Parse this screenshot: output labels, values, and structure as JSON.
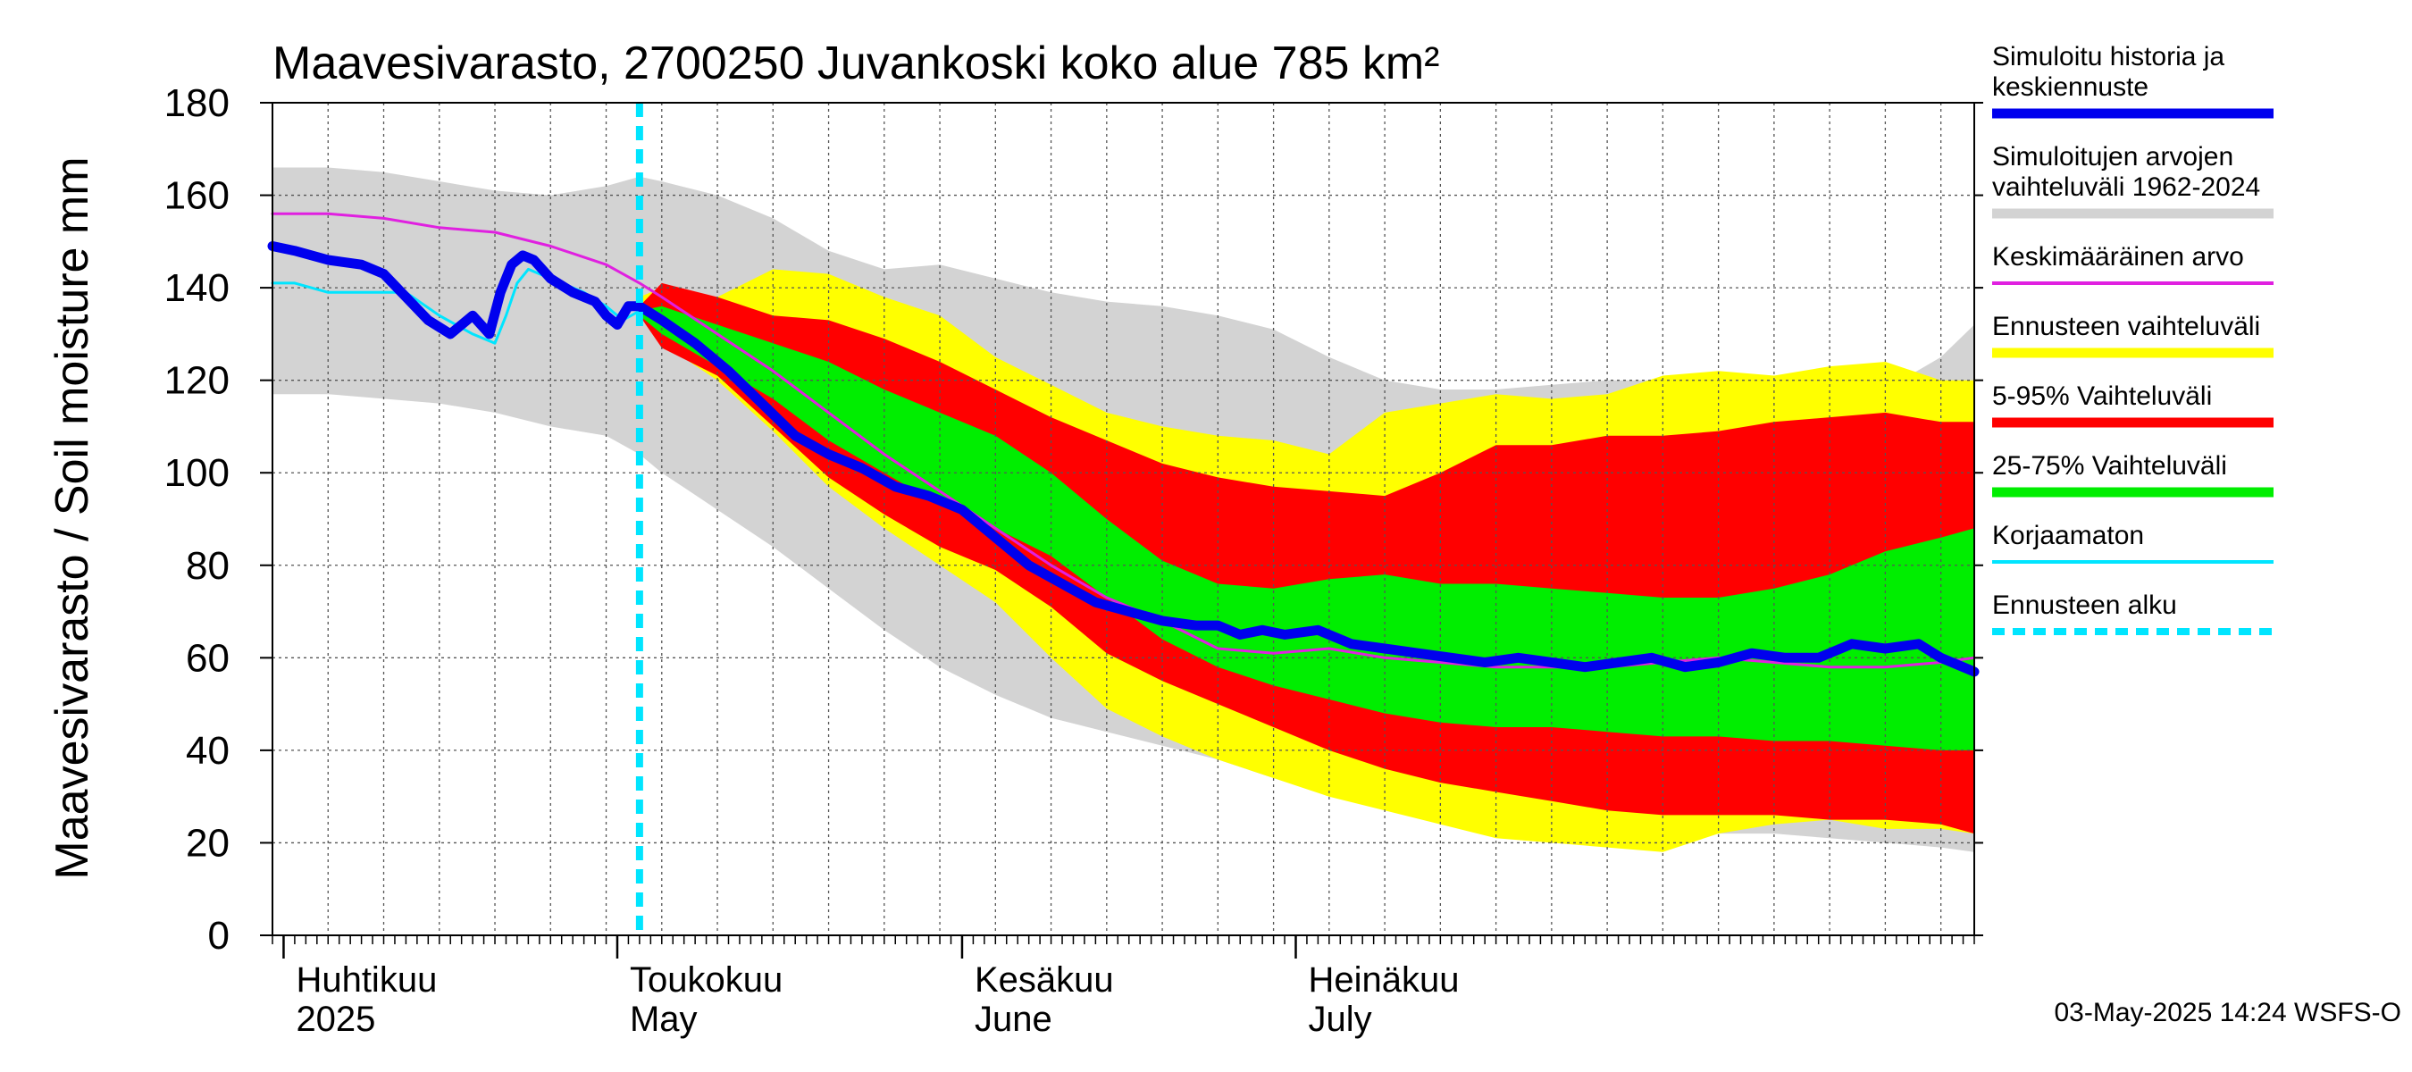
{
  "chart_data": {
    "type": "area",
    "title": "Maavesivarasto, 2700250 Juvankoski koko alue 785 km²",
    "ylabel": "Maavesivarasto / Soil moisture   mm",
    "ylim": [
      0,
      180
    ],
    "yticks": [
      0,
      20,
      40,
      60,
      80,
      100,
      120,
      140,
      160,
      180
    ],
    "x_unit": "day of year 2025",
    "xlim": [
      90,
      243
    ],
    "forecast_start": 123,
    "months": [
      {
        "fi": "Huhtikuu",
        "en": "2025",
        "start": 91
      },
      {
        "fi": "Toukokuu",
        "en": "May",
        "start": 121
      },
      {
        "fi": "Kesäkuu",
        "en": "June",
        "start": 152
      },
      {
        "fi": "Heinäkuu",
        "en": "July",
        "start": 182
      }
    ],
    "x": [
      90,
      95,
      100,
      105,
      110,
      115,
      120,
      123,
      125,
      130,
      135,
      140,
      145,
      150,
      155,
      160,
      165,
      170,
      175,
      180,
      185,
      190,
      195,
      200,
      205,
      210,
      215,
      220,
      225,
      230,
      235,
      240,
      243
    ],
    "series": [
      {
        "name": "Simuloitujen arvojen vaihteluväli 1962-2024",
        "color": "#d3d3d3",
        "kind": "band",
        "upper": [
          166,
          166,
          165,
          163,
          161,
          160,
          162,
          164,
          163,
          160,
          155,
          148,
          144,
          145,
          142,
          139,
          137,
          136,
          134,
          131,
          125,
          120,
          118,
          118,
          119,
          120,
          120,
          118,
          115,
          115,
          118,
          125,
          132
        ],
        "lower": [
          117,
          117,
          116,
          115,
          113,
          110,
          108,
          104,
          100,
          92,
          84,
          75,
          66,
          58,
          52,
          47,
          44,
          41,
          38,
          34,
          32,
          30,
          28,
          26,
          24,
          23,
          23,
          22,
          22,
          21,
          20,
          19,
          18
        ]
      },
      {
        "name": "Ennusteen vaihteluväli",
        "color": "#ffff00",
        "kind": "band",
        "x": [
          123,
          125,
          130,
          135,
          140,
          145,
          150,
          155,
          160,
          165,
          170,
          175,
          180,
          185,
          190,
          195,
          200,
          205,
          210,
          215,
          220,
          225,
          230,
          235,
          240,
          243
        ],
        "upper": [
          138,
          140,
          138,
          144,
          143,
          138,
          134,
          125,
          119,
          113,
          110,
          108,
          107,
          104,
          113,
          115,
          117,
          116,
          117,
          121,
          122,
          121,
          123,
          124,
          120,
          120
        ],
        "lower": [
          134,
          128,
          120,
          109,
          97,
          88,
          80,
          72,
          60,
          49,
          43,
          38,
          34,
          30,
          27,
          24,
          21,
          20,
          19,
          18,
          22,
          24,
          25,
          23,
          23,
          22
        ]
      },
      {
        "name": "5-95% Vaihteluväli",
        "color": "#ff0000",
        "kind": "band",
        "x": [
          123,
          125,
          130,
          135,
          140,
          145,
          150,
          155,
          160,
          165,
          170,
          175,
          180,
          185,
          190,
          195,
          200,
          205,
          210,
          215,
          220,
          225,
          230,
          235,
          240,
          243
        ],
        "upper": [
          136,
          141,
          138,
          134,
          133,
          129,
          124,
          118,
          112,
          107,
          102,
          99,
          97,
          96,
          95,
          100,
          106,
          106,
          108,
          108,
          109,
          111,
          112,
          113,
          111,
          111
        ],
        "lower": [
          134,
          127,
          121,
          110,
          99,
          91,
          84,
          79,
          71,
          61,
          55,
          50,
          45,
          40,
          36,
          33,
          31,
          29,
          27,
          26,
          26,
          26,
          25,
          25,
          24,
          22
        ]
      },
      {
        "name": "25-75% Vaihteluväli",
        "color": "#00ee00",
        "kind": "band",
        "x": [
          123,
          125,
          130,
          135,
          140,
          145,
          150,
          155,
          160,
          165,
          170,
          175,
          180,
          185,
          190,
          195,
          200,
          205,
          210,
          215,
          220,
          225,
          230,
          235,
          240,
          243
        ],
        "upper": [
          135,
          136,
          132,
          128,
          124,
          118,
          113,
          108,
          100,
          90,
          81,
          76,
          75,
          77,
          78,
          76,
          76,
          75,
          74,
          73,
          73,
          75,
          78,
          83,
          86,
          88
        ],
        "lower": [
          134,
          130,
          123,
          116,
          107,
          100,
          93,
          88,
          82,
          73,
          64,
          58,
          54,
          51,
          48,
          46,
          45,
          45,
          44,
          43,
          43,
          42,
          42,
          41,
          40,
          40
        ]
      },
      {
        "name": "Keskimääräinen arvo",
        "color": "#e020e0",
        "kind": "line",
        "values": [
          156,
          156,
          155,
          153,
          152,
          149,
          145,
          141,
          138,
          130,
          122,
          113,
          104,
          96,
          88,
          80,
          73,
          68,
          62,
          61,
          62,
          60,
          59,
          58,
          58,
          58,
          59,
          60,
          59,
          58,
          58,
          59,
          60
        ]
      },
      {
        "name": "Korjaamaton",
        "color": "#00e5ff",
        "kind": "line",
        "x": [
          90,
          92,
          95,
          98,
          102,
          105,
          108,
          110,
          111,
          112,
          113,
          115,
          117,
          118,
          120,
          121.5,
          123
        ],
        "values": [
          141,
          141,
          139,
          139,
          139,
          134,
          130,
          128,
          134,
          141,
          144,
          142,
          140,
          139,
          136,
          133,
          135
        ]
      },
      {
        "name": "Simuloitu historia ja keskiennuste",
        "color": "#0000ee",
        "kind": "line",
        "x": [
          90,
          92,
          95,
          98,
          100,
          102,
          104,
          106,
          108,
          109.5,
          110.5,
          111.5,
          112.5,
          113.5,
          115,
          117,
          119,
          120,
          121,
          122,
          123,
          125,
          128,
          131,
          134,
          137,
          140,
          143,
          146,
          149,
          152,
          155,
          158,
          161,
          164,
          167,
          170,
          173,
          175,
          177,
          179,
          181,
          184,
          187,
          190,
          193,
          196,
          199,
          202,
          205,
          208,
          211,
          214,
          217,
          220,
          223,
          226,
          229,
          232,
          235,
          238,
          240,
          243
        ],
        "values": [
          149,
          148,
          146,
          145,
          143,
          138,
          133,
          130,
          134,
          130,
          139,
          145,
          147,
          146,
          142,
          139,
          137,
          134,
          132,
          136,
          136,
          133,
          128,
          122,
          115,
          108,
          104,
          101,
          97,
          95,
          92,
          86,
          80,
          76,
          72,
          70,
          68,
          67,
          67,
          65,
          66,
          65,
          66,
          63,
          62,
          61,
          60,
          59,
          60,
          59,
          58,
          59,
          60,
          58,
          59,
          61,
          60,
          60,
          63,
          62,
          63,
          60,
          57
        ]
      }
    ],
    "legend": [
      {
        "label": "Simuloitu historia ja keskiennuste",
        "color": "#0000ee",
        "style": "thick"
      },
      {
        "label": "Simuloitujen arvojen vaihteluväli 1962-2024",
        "color": "#d3d3d3",
        "style": "thick"
      },
      {
        "label": "Keskimääräinen arvo",
        "color": "#e020e0",
        "style": "thin"
      },
      {
        "label": "Ennusteen vaihteluväli",
        "color": "#ffff00",
        "style": "thick"
      },
      {
        "label": "5-95% Vaihteluväli",
        "color": "#ff0000",
        "style": "thick"
      },
      {
        "label": "25-75% Vaihteluväli",
        "color": "#00ee00",
        "style": "thick"
      },
      {
        "label": "Korjaamaton",
        "color": "#00e5ff",
        "style": "thin"
      },
      {
        "label": "Ennusteen alku",
        "color": "#00e5ff",
        "style": "dashed"
      }
    ],
    "timestamp": "03-May-2025 14:24 WSFS-O"
  }
}
